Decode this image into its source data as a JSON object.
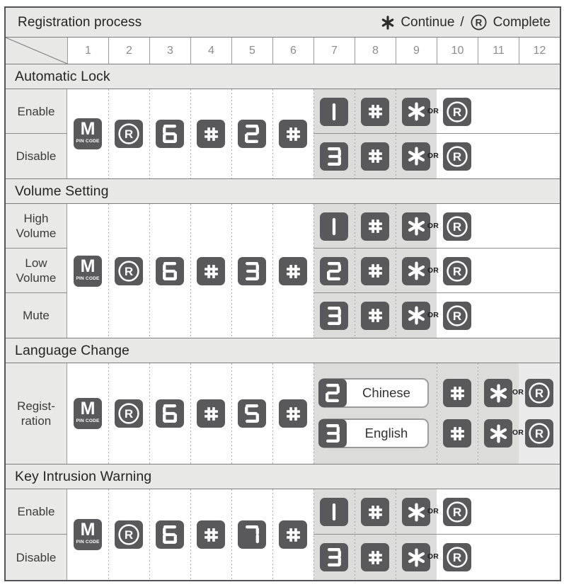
{
  "header": {
    "title": "Registration process",
    "legend": {
      "continue_symbol": "*",
      "continue_label": "Continue",
      "separator": "/",
      "complete_symbol": "R",
      "complete_label": "Complete"
    }
  },
  "columns": [
    "1",
    "2",
    "3",
    "4",
    "5",
    "6",
    "7",
    "8",
    "9",
    "10",
    "11",
    "12"
  ],
  "or_label": "OR",
  "m_key": {
    "label": "M",
    "sub_label": "PIN CODE"
  },
  "colors": {
    "key_bg": "#59595b",
    "band_bg": "#e8e8e6",
    "shade": "#dcdcda",
    "shade_light": "#eaeaea"
  },
  "sections": [
    {
      "title": "Automatic Lock",
      "command": [
        "M",
        "R",
        "6",
        "#",
        "2",
        "#"
      ],
      "rows": [
        {
          "label": "Enable",
          "result": [
            "1",
            "#",
            "*"
          ],
          "final": "R"
        },
        {
          "label": "Disable",
          "result": [
            "3",
            "#",
            "*"
          ],
          "final": "R"
        }
      ]
    },
    {
      "title": "Volume Setting",
      "command": [
        "M",
        "R",
        "6",
        "#",
        "3",
        "#"
      ],
      "rows": [
        {
          "label": "High\nVolume",
          "result": [
            "1",
            "#",
            "*"
          ],
          "final": "R"
        },
        {
          "label": "Low\nVolume",
          "result": [
            "2",
            "#",
            "*"
          ],
          "final": "R"
        },
        {
          "label": "Mute",
          "result": [
            "3",
            "#",
            "*"
          ],
          "final": "R"
        }
      ]
    },
    {
      "title": "Language Change",
      "command": [
        "M",
        "R",
        "6",
        "#",
        "5",
        "#"
      ],
      "language_row": {
        "label": "Regist-\nration",
        "options": [
          {
            "key": "2",
            "language": "Chinese"
          },
          {
            "key": "3",
            "language": "English"
          }
        ],
        "after": [
          "#",
          "*"
        ],
        "final": "R"
      }
    },
    {
      "title": "Key Intrusion Warning",
      "command": [
        "M",
        "R",
        "6",
        "#",
        "7",
        "#"
      ],
      "rows": [
        {
          "label": "Enable",
          "result": [
            "1",
            "#",
            "*"
          ],
          "final": "R"
        },
        {
          "label": "Disable",
          "result": [
            "3",
            "#",
            "*"
          ],
          "final": "R"
        }
      ]
    }
  ]
}
